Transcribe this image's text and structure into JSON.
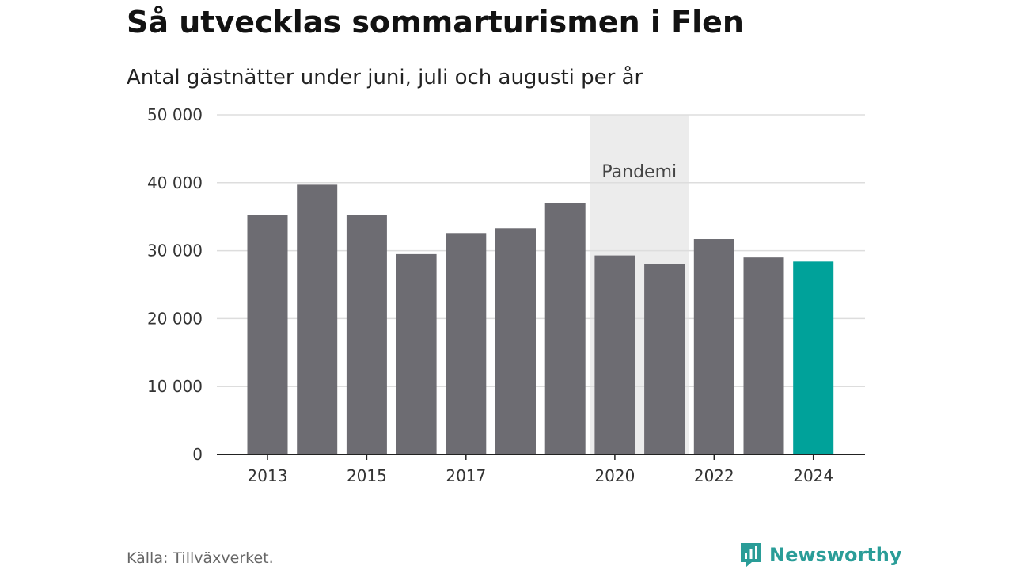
{
  "title": "Så utvecklas sommarturismen i Flen",
  "subtitle": "Antal gästnätter under juni, juli och augusti per år",
  "source": "Källa: Tillväxverket.",
  "logo": {
    "text": "Newsworthy",
    "icon": "newsworthy-logo-icon",
    "color": "#2a9d98"
  },
  "colors": {
    "bar": "#6d6c72",
    "highlight": "#00a29a",
    "shade": "#ececec",
    "grid": "#dddddd",
    "axis": "#222222"
  },
  "chart_data": {
    "type": "bar",
    "title": "Så utvecklas sommarturismen i Flen",
    "subtitle": "Antal gästnätter under juni, juli och augusti per år",
    "xlabel": "",
    "ylabel": "",
    "ylim": [
      0,
      50000
    ],
    "grid": true,
    "categories": [
      "2013",
      "2014",
      "2015",
      "2016",
      "2017",
      "2018",
      "2019",
      "2020",
      "2021",
      "2022",
      "2023",
      "2024"
    ],
    "values": [
      35300,
      39700,
      35300,
      29500,
      32600,
      33300,
      37000,
      29300,
      28000,
      31700,
      29000,
      28400
    ],
    "highlight": "2024",
    "x_tick_labels": [
      "2013",
      "2015",
      "2017",
      "2020",
      "2022",
      "2024"
    ],
    "y_ticks": [
      0,
      10000,
      20000,
      30000,
      40000,
      50000
    ],
    "y_tick_labels": [
      "0",
      "10 000",
      "20 000",
      "30 000",
      "40 000",
      "50 000"
    ],
    "annotation": {
      "label": "Pandemi",
      "from": "2020",
      "to": "2021"
    }
  }
}
